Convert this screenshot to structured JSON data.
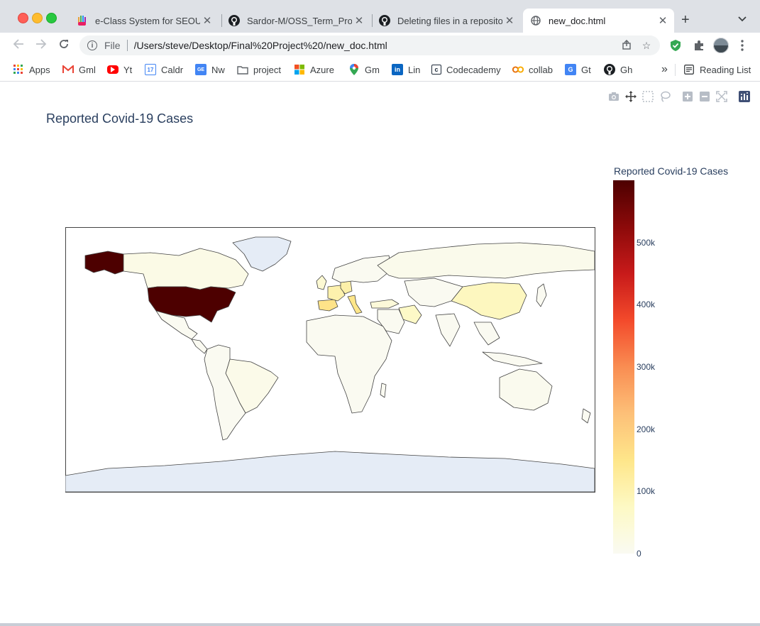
{
  "browser": {
    "tabs": [
      {
        "title": "e-Class System for SEOUL",
        "icon": "eclass-hand-icon",
        "active": false
      },
      {
        "title": "Sardor-M/OSS_Term_Proje",
        "icon": "github-icon",
        "active": false
      },
      {
        "title": "Deleting files in a reposito",
        "icon": "github-icon",
        "active": false
      },
      {
        "title": "new_doc.html",
        "icon": "globe-icon",
        "active": true
      }
    ],
    "new_tab_symbol": "+",
    "omnibox": {
      "scheme_label": "File",
      "url": "/Users/steve/Desktop/Final%20Project%20/new_doc.html"
    },
    "bookmarks": [
      {
        "label": "Apps",
        "icon": "apps-grid-icon"
      },
      {
        "label": "Gml",
        "icon": "gmail-icon"
      },
      {
        "label": "Yt",
        "icon": "youtube-icon"
      },
      {
        "label": "Caldr",
        "icon": "calendar-icon"
      },
      {
        "label": "Nw",
        "icon": "news-icon"
      },
      {
        "label": "project",
        "icon": "folder-icon"
      },
      {
        "label": "Azure",
        "icon": "microsoft-icon"
      },
      {
        "label": "Gm",
        "icon": "maps-pin-icon"
      },
      {
        "label": "Lin",
        "icon": "linkedin-icon"
      },
      {
        "label": "Codecademy",
        "icon": "codecademy-icon"
      },
      {
        "label": "collab",
        "icon": "colab-icon"
      },
      {
        "label": "Gt",
        "icon": "translate-icon"
      },
      {
        "label": "Gh",
        "icon": "github-icon"
      }
    ],
    "bookmarks_overflow": "»",
    "reading_list_label": "Reading List",
    "calendar_day": "17"
  },
  "chart_data": {
    "type": "choropleth",
    "title": "Reported Covid-19 Cases",
    "colorbar": {
      "title": "Reported Covid-19 Cases",
      "ticks": [
        "0",
        "100k",
        "200k",
        "300k",
        "400k",
        "500k"
      ],
      "tick_values": [
        0,
        100000,
        200000,
        300000,
        400000,
        500000
      ],
      "range": [
        0,
        600000
      ],
      "colorscale": [
        "#fafaf2",
        "#fdf9c4",
        "#fee68a",
        "#fdc078",
        "#f98d52",
        "#f34a2b",
        "#c81a1a",
        "#8c0a0a",
        "#4d0000"
      ]
    },
    "regions": [
      {
        "name": "United States",
        "value": 600000
      },
      {
        "name": "Alaska",
        "value": 600000
      },
      {
        "name": "Spain",
        "value": 155000
      },
      {
        "name": "Italy",
        "value": 150000
      },
      {
        "name": "Germany",
        "value": 110000
      },
      {
        "name": "France",
        "value": 105000
      },
      {
        "name": "Iran",
        "value": 70000
      },
      {
        "name": "China",
        "value": 82000
      },
      {
        "name": "United Kingdom",
        "value": 50000
      },
      {
        "name": "Turkey",
        "value": 40000
      },
      {
        "name": "Canada",
        "value": 20000
      },
      {
        "name": "Brazil",
        "value": 15000
      },
      {
        "name": "Russia",
        "value": 12000
      },
      {
        "name": "Australia",
        "value": 6000
      },
      {
        "name": "Africa",
        "value": 1000
      },
      {
        "name": "Greenland",
        "value": null
      },
      {
        "name": "Antarctica",
        "value": null
      }
    ]
  }
}
